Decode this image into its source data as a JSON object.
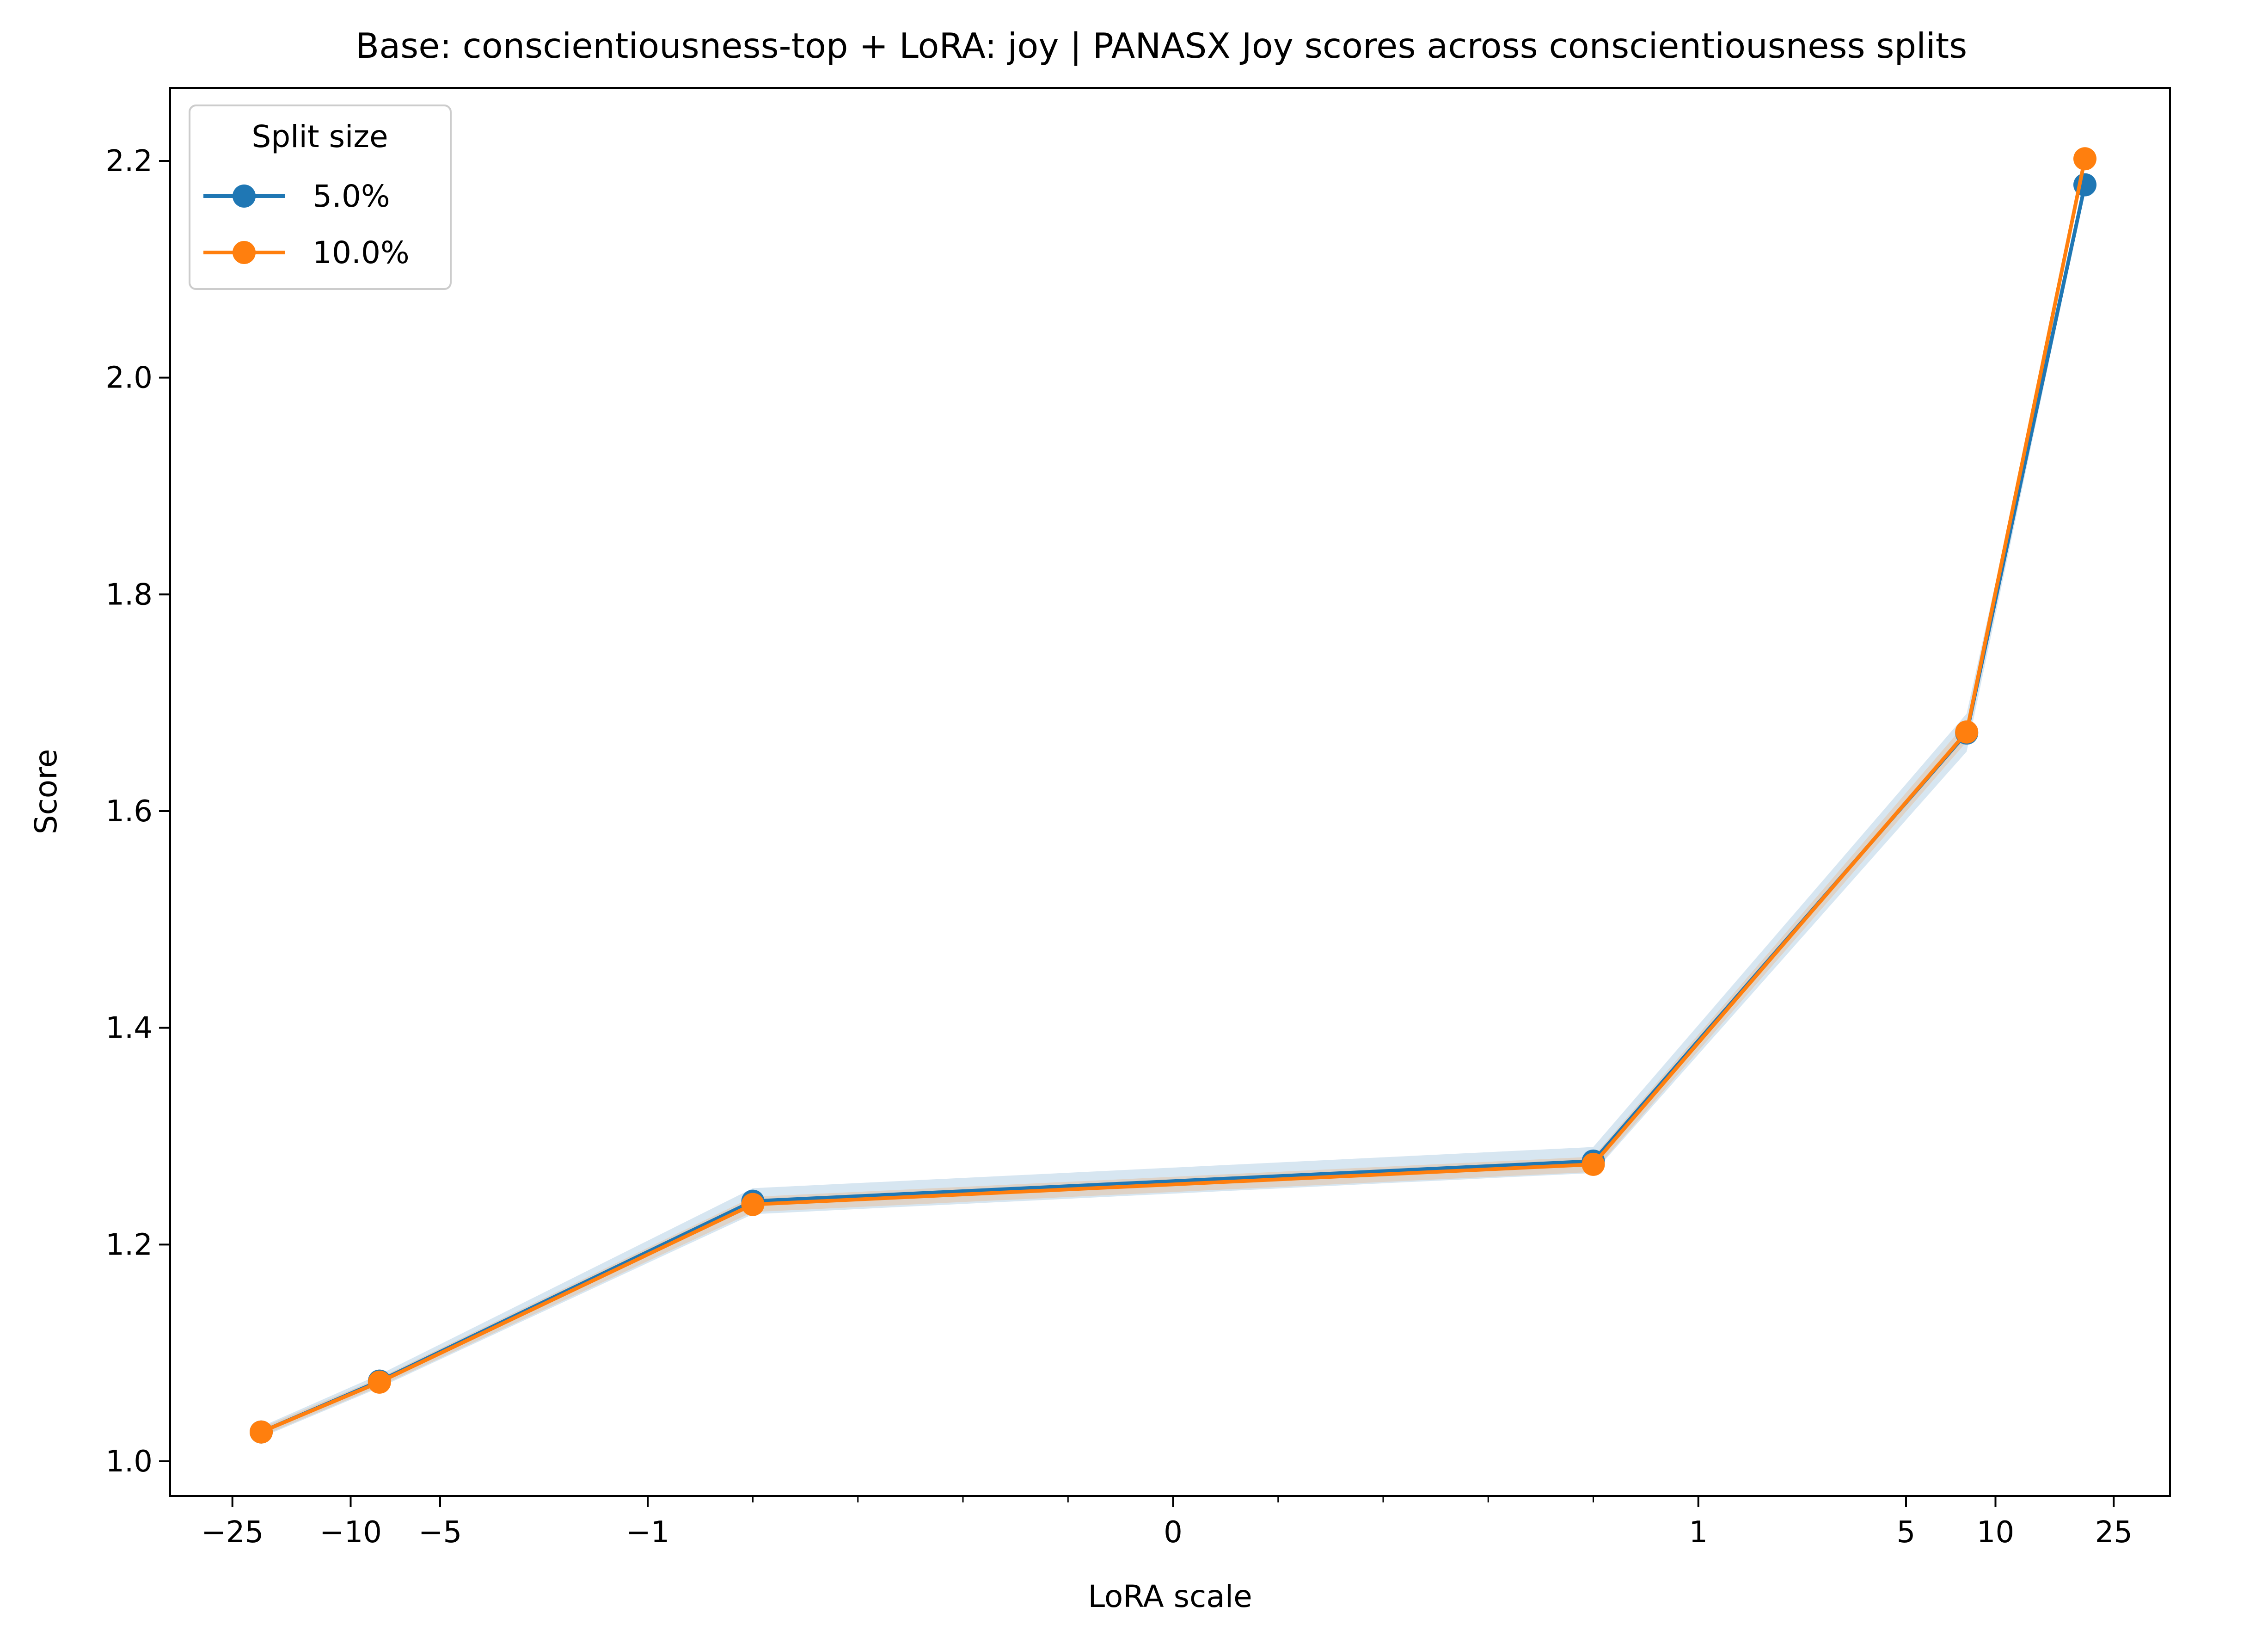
{
  "chart_data": {
    "type": "line",
    "title": "Base: conscientiousness-top + LoRA: joy | PANASX Joy scores across conscientiousness splits",
    "xlabel": "LoRA scale",
    "ylabel": "Score",
    "x_scale": "symlog",
    "x_ticks": [
      -25,
      -10,
      -5,
      -1,
      0,
      1,
      5,
      10,
      25
    ],
    "x_tick_labels": [
      "−25",
      "−10",
      "−5",
      "−1",
      "0",
      "1",
      "5",
      "10",
      "25"
    ],
    "y_ticks": [
      1.0,
      1.2,
      1.4,
      1.6,
      1.8,
      2.0,
      2.2
    ],
    "y_tick_labels": [
      "1.0",
      "1.2",
      "1.4",
      "1.6",
      "1.8",
      "2.0",
      "2.2"
    ],
    "ylim": [
      0.967,
      2.267
    ],
    "grid": false,
    "legend": {
      "title": "Split size",
      "placement": "top-left"
    },
    "x": [
      -20,
      -8,
      -0.8,
      0.8,
      8,
      20
    ],
    "series": [
      {
        "name": "5.0%",
        "color": "#1f77b4",
        "values": [
          1.027,
          1.074,
          1.24,
          1.277,
          1.672,
          2.178
        ],
        "band_low": [
          1.022,
          1.068,
          1.228,
          1.266,
          1.655,
          2.172
        ],
        "band_high": [
          1.032,
          1.08,
          1.252,
          1.29,
          1.69,
          2.185
        ]
      },
      {
        "name": "10.0%",
        "color": "#ff7f0e",
        "values": [
          1.027,
          1.073,
          1.237,
          1.274,
          1.673,
          2.202
        ],
        "band_low": [
          1.023,
          1.069,
          1.23,
          1.267,
          1.664,
          2.198
        ],
        "band_high": [
          1.031,
          1.077,
          1.244,
          1.281,
          1.682,
          2.206
        ]
      }
    ]
  }
}
